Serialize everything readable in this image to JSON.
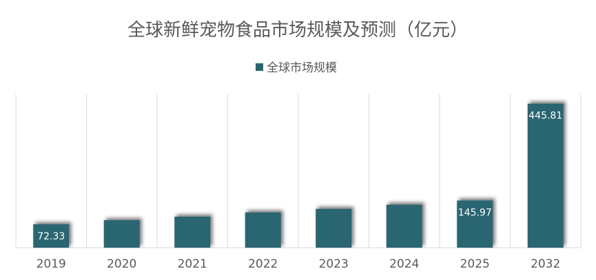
{
  "chart_data": {
    "type": "bar",
    "title": "全球新鲜宠物食品市场规模及预测（亿元）",
    "categories": [
      "2019",
      "2020",
      "2021",
      "2022",
      "2023",
      "2024",
      "2025",
      "2032"
    ],
    "series": [
      {
        "name": "全球市场规模",
        "color": "#2a6572",
        "values": [
          72.33,
          85,
          96,
          109,
          120,
          133,
          145.97,
          445.81
        ],
        "data_labels": [
          "72.33",
          "",
          "",
          "",
          "",
          "",
          "145.97",
          "445.81"
        ]
      }
    ],
    "ylim": [
      0,
      475
    ],
    "legend": "top-center",
    "grid": "vertical category separators"
  }
}
